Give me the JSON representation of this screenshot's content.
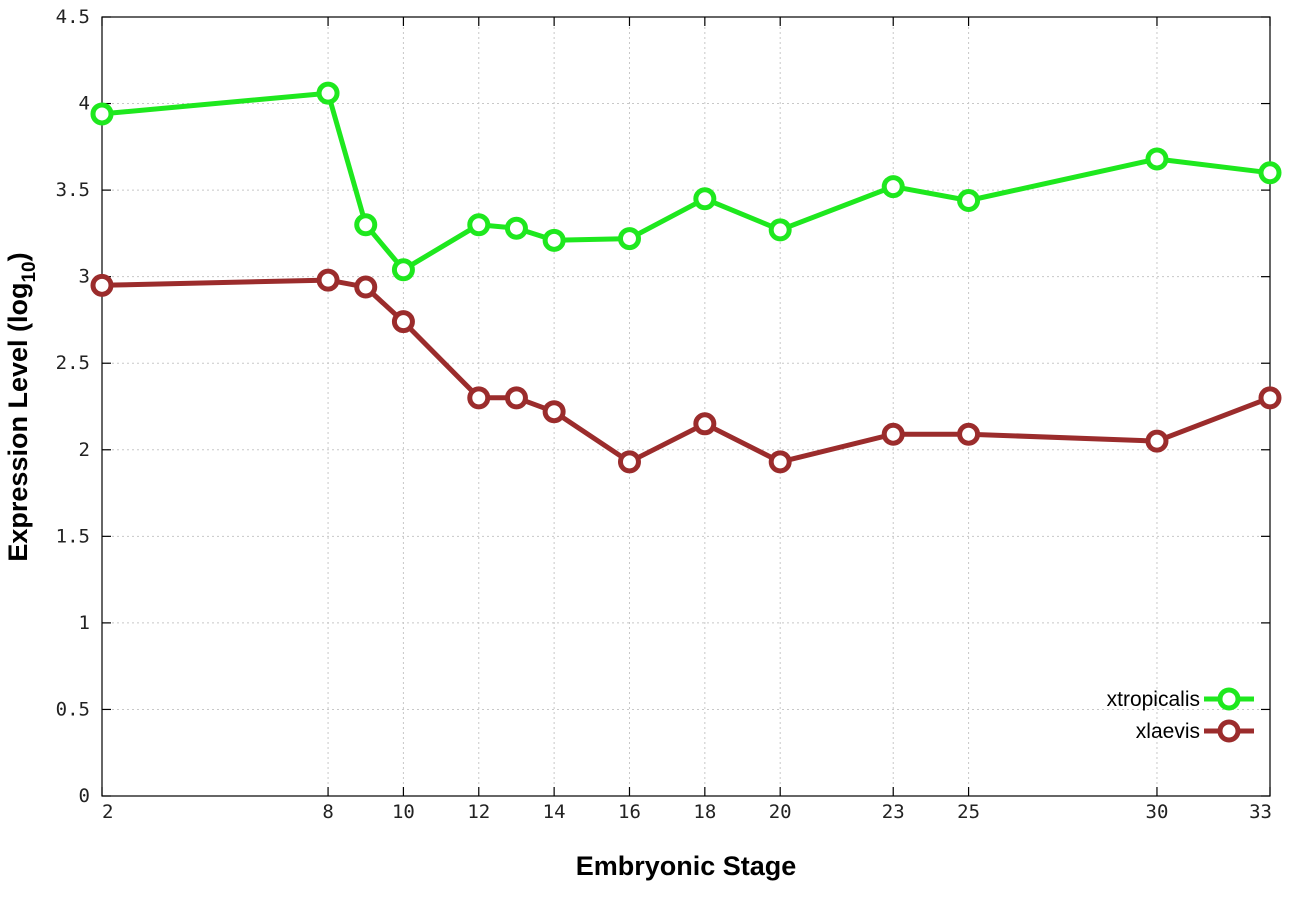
{
  "chart_data": {
    "type": "line",
    "xlabel": "Embryonic Stage",
    "ylabel": "Expression Level (log",
    "ylabel_sub": "10",
    "ylabel_close": ")",
    "x": [
      2,
      8,
      9,
      10,
      12,
      13,
      14,
      16,
      18,
      20,
      23,
      25,
      30,
      33
    ],
    "xlim": [
      2,
      33
    ],
    "xticks": [
      2,
      8,
      10,
      12,
      14,
      16,
      18,
      20,
      23,
      25,
      30,
      33
    ],
    "ylim": [
      0,
      4.5
    ],
    "yticks": [
      0,
      0.5,
      1,
      1.5,
      2,
      2.5,
      3,
      3.5,
      4,
      4.5
    ],
    "ytick_labels": [
      "0",
      "0.5",
      "1",
      "1.5",
      "2",
      "2.5",
      "3",
      "3.5",
      "4",
      "4.5"
    ],
    "grid": true,
    "legend_position": "bottom-right",
    "series": [
      {
        "name": "xtropicalis",
        "color": "#1ee81e",
        "values": [
          3.94,
          4.06,
          3.3,
          3.04,
          3.3,
          3.28,
          3.21,
          3.22,
          3.45,
          3.27,
          3.52,
          3.44,
          3.68,
          3.6
        ]
      },
      {
        "name": "xlaevis",
        "color": "#9b2c2c",
        "values": [
          2.95,
          2.98,
          2.94,
          2.74,
          2.3,
          2.3,
          2.22,
          1.93,
          2.15,
          1.93,
          2.09,
          2.09,
          2.05,
          2.3
        ]
      }
    ]
  }
}
